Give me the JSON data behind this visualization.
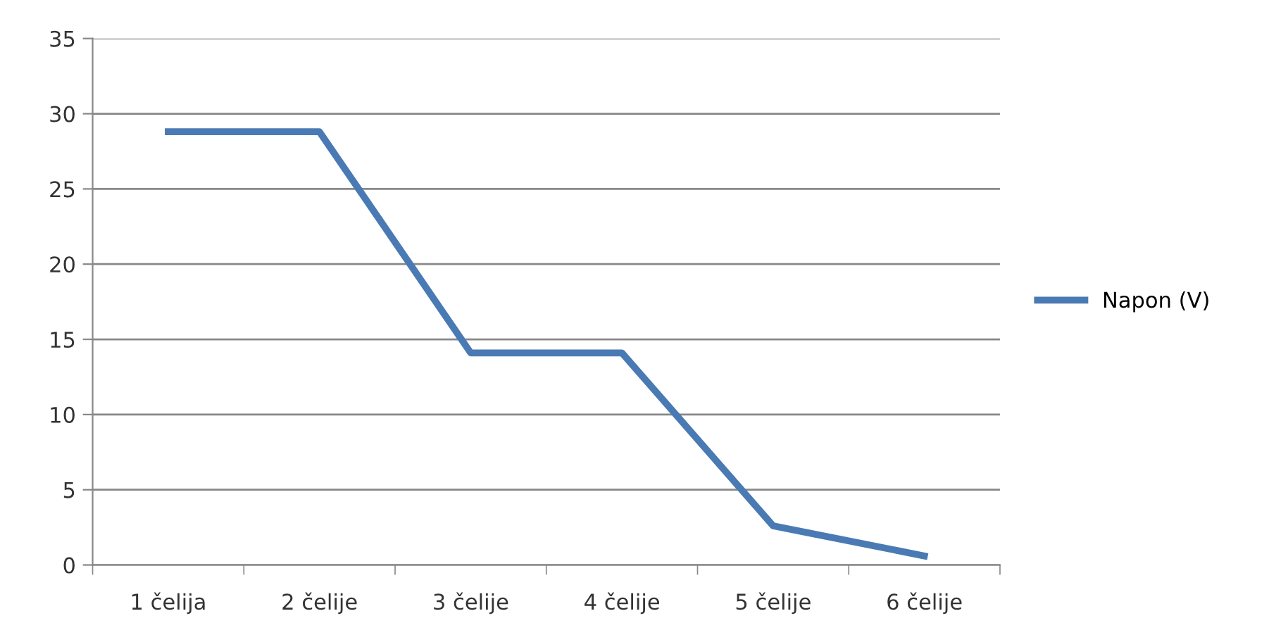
{
  "chart_data": {
    "type": "line",
    "categories": [
      "1 čelija",
      "2 čelije",
      "3 čelije",
      "4 čelije",
      "5 čelije",
      "6 čelije"
    ],
    "series": [
      {
        "name": "Napon (V)",
        "color": "#4a7ab4",
        "values": [
          28.8,
          28.8,
          14.1,
          14.1,
          2.6,
          0.6
        ]
      }
    ],
    "ylim": [
      0,
      35
    ],
    "yticks": [
      0,
      5,
      10,
      15,
      20,
      25,
      30,
      35
    ],
    "grid": "y",
    "legend": "right",
    "marker": "none",
    "line_style": "solid"
  }
}
